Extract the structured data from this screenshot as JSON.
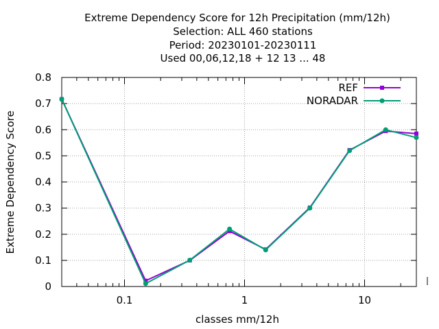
{
  "chart_data": {
    "type": "line",
    "title_lines": [
      "Extreme Dependency Score  for 12h Precipitation (mm/12h)",
      "Selection: ALL    460 stations",
      "Period: 20230101-20230111",
      "Used  00,06,12,18 + 12 13 ... 48"
    ],
    "xlabel": "classes mm/12h",
    "ylabel": "Extreme Dependency Score",
    "x_scale": "log",
    "xlim": [
      0.03,
      27
    ],
    "ylim": [
      0,
      0.8
    ],
    "x_ticks": [
      {
        "value": 0.1,
        "label": "0.1"
      },
      {
        "value": 1,
        "label": "1"
      },
      {
        "value": 10,
        "label": "10"
      }
    ],
    "y_ticks": [
      {
        "value": 0,
        "label": "0"
      },
      {
        "value": 0.1,
        "label": "0.1"
      },
      {
        "value": 0.2,
        "label": "0.2"
      },
      {
        "value": 0.3,
        "label": "0.3"
      },
      {
        "value": 0.4,
        "label": "0.4"
      },
      {
        "value": 0.5,
        "label": "0.5"
      },
      {
        "value": 0.6,
        "label": "0.6"
      },
      {
        "value": 0.7,
        "label": "0.7"
      },
      {
        "value": 0.8,
        "label": "0.8"
      }
    ],
    "grid": true,
    "legend_position": "top-right",
    "x": [
      0.03,
      0.15,
      0.35,
      0.75,
      1.5,
      3.5,
      7.5,
      15,
      27
    ],
    "series": [
      {
        "name": "REF",
        "color": "#9400d3",
        "marker": "filled-square",
        "values": [
          0.717,
          0.022,
          0.1,
          0.212,
          0.142,
          0.302,
          0.522,
          0.595,
          0.585
        ]
      },
      {
        "name": "NORADAR",
        "color": "#009e73",
        "marker": "filled-circle",
        "values": [
          0.717,
          0.011,
          0.101,
          0.22,
          0.14,
          0.3,
          0.52,
          0.6,
          0.57
        ]
      }
    ]
  }
}
